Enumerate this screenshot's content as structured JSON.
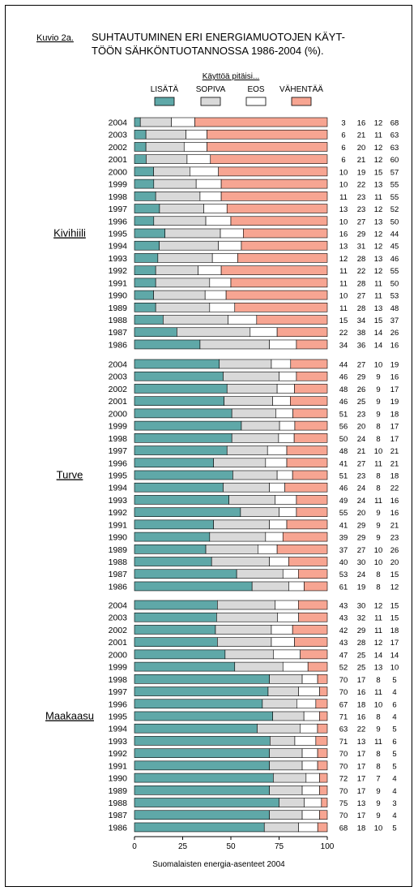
{
  "caption_label": "Kuvio 2a.",
  "title_line1": "SUHTAUTUMINEN ERI ENERGIAMUOTOJEN KÄYT-",
  "title_line2": "TÖÖN SÄHKÖNTUOTANNOSSA 1986-2004 (%).",
  "legend": {
    "heading": "Käyttöä pitäisi...",
    "items": [
      {
        "label": "LISÄTÄ",
        "color": "#5fa8a8"
      },
      {
        "label": "SOPIVA",
        "color": "#d9d9d9"
      },
      {
        "label": "EOS",
        "color": "#ffffff"
      },
      {
        "label": "VÄHENTÄÄ",
        "color": "#f7a592"
      }
    ]
  },
  "source_note": "Suomalaisten energia-asenteet 2004",
  "chart_data": {
    "type": "bar",
    "orientation": "horizontal",
    "stacked": true,
    "xlim": [
      0,
      100
    ],
    "xticks": [
      "0",
      "25",
      "50",
      "75",
      "100"
    ],
    "series_names": [
      "LISÄTÄ",
      "SOPIVA",
      "EOS",
      "VÄHENTÄÄ"
    ],
    "groups": [
      {
        "name": "Kivihiili",
        "rows": [
          {
            "year": "2004",
            "values": [
              3,
              16,
              12,
              68
            ]
          },
          {
            "year": "2003",
            "values": [
              6,
              21,
              11,
              63
            ]
          },
          {
            "year": "2002",
            "values": [
              6,
              20,
              12,
              63
            ]
          },
          {
            "year": "2001",
            "values": [
              6,
              21,
              12,
              60
            ]
          },
          {
            "year": "2000",
            "values": [
              10,
              19,
              15,
              57
            ]
          },
          {
            "year": "1999",
            "values": [
              10,
              22,
              13,
              55
            ]
          },
          {
            "year": "1998",
            "values": [
              11,
              23,
              11,
              55
            ]
          },
          {
            "year": "1997",
            "values": [
              13,
              23,
              12,
              52
            ]
          },
          {
            "year": "1996",
            "values": [
              10,
              27,
              13,
              50
            ]
          },
          {
            "year": "1995",
            "values": [
              16,
              29,
              12,
              44
            ]
          },
          {
            "year": "1994",
            "values": [
              13,
              31,
              12,
              45
            ]
          },
          {
            "year": "1993",
            "values": [
              12,
              28,
              13,
              46
            ]
          },
          {
            "year": "1992",
            "values": [
              11,
              22,
              12,
              55
            ]
          },
          {
            "year": "1991",
            "values": [
              11,
              28,
              11,
              50
            ]
          },
          {
            "year": "1990",
            "values": [
              10,
              27,
              11,
              53
            ]
          },
          {
            "year": "1989",
            "values": [
              11,
              28,
              13,
              48
            ]
          },
          {
            "year": "1988",
            "values": [
              15,
              34,
              15,
              37
            ]
          },
          {
            "year": "1987",
            "values": [
              22,
              38,
              14,
              26
            ]
          },
          {
            "year": "1986",
            "values": [
              34,
              36,
              14,
              16
            ]
          }
        ]
      },
      {
        "name": "Turve",
        "rows": [
          {
            "year": "2004",
            "values": [
              44,
              27,
              10,
              19
            ]
          },
          {
            "year": "2003",
            "values": [
              46,
              29,
              9,
              16
            ]
          },
          {
            "year": "2002",
            "values": [
              48,
              26,
              9,
              17
            ]
          },
          {
            "year": "2001",
            "values": [
              46,
              25,
              9,
              19
            ]
          },
          {
            "year": "2000",
            "values": [
              51,
              23,
              9,
              18
            ]
          },
          {
            "year": "1999",
            "values": [
              56,
              20,
              8,
              17
            ]
          },
          {
            "year": "1998",
            "values": [
              50,
              24,
              8,
              17
            ]
          },
          {
            "year": "1997",
            "values": [
              48,
              21,
              10,
              21
            ]
          },
          {
            "year": "1996",
            "values": [
              41,
              27,
              11,
              21
            ]
          },
          {
            "year": "1995",
            "values": [
              51,
              23,
              8,
              18
            ]
          },
          {
            "year": "1994",
            "values": [
              46,
              24,
              8,
              22
            ]
          },
          {
            "year": "1993",
            "values": [
              49,
              24,
              11,
              16
            ]
          },
          {
            "year": "1992",
            "values": [
              55,
              20,
              9,
              16
            ]
          },
          {
            "year": "1991",
            "values": [
              41,
              29,
              9,
              21
            ]
          },
          {
            "year": "1990",
            "values": [
              39,
              29,
              9,
              23
            ]
          },
          {
            "year": "1989",
            "values": [
              37,
              27,
              10,
              26
            ]
          },
          {
            "year": "1988",
            "values": [
              40,
              30,
              10,
              20
            ]
          },
          {
            "year": "1987",
            "values": [
              53,
              24,
              8,
              15
            ]
          },
          {
            "year": "1986",
            "values": [
              61,
              19,
              8,
              12
            ]
          }
        ]
      },
      {
        "name": "Maakaasu",
        "rows": [
          {
            "year": "2004",
            "values": [
              43,
              30,
              12,
              15
            ]
          },
          {
            "year": "2003",
            "values": [
              43,
              32,
              11,
              15
            ]
          },
          {
            "year": "2002",
            "values": [
              42,
              29,
              11,
              18
            ]
          },
          {
            "year": "2001",
            "values": [
              43,
              28,
              12,
              17
            ]
          },
          {
            "year": "2000",
            "values": [
              47,
              25,
              14,
              14
            ]
          },
          {
            "year": "1999",
            "values": [
              52,
              25,
              13,
              10
            ]
          },
          {
            "year": "1998",
            "values": [
              70,
              17,
              8,
              5
            ]
          },
          {
            "year": "1997",
            "values": [
              70,
              16,
              11,
              4
            ]
          },
          {
            "year": "1996",
            "values": [
              67,
              18,
              10,
              6
            ]
          },
          {
            "year": "1995",
            "values": [
              71,
              16,
              8,
              4
            ]
          },
          {
            "year": "1994",
            "values": [
              63,
              22,
              9,
              5
            ]
          },
          {
            "year": "1993",
            "values": [
              71,
              13,
              11,
              6
            ]
          },
          {
            "year": "1992",
            "values": [
              70,
              17,
              8,
              5
            ]
          },
          {
            "year": "1991",
            "values": [
              70,
              17,
              8,
              5
            ]
          },
          {
            "year": "1990",
            "values": [
              72,
              17,
              7,
              4
            ]
          },
          {
            "year": "1989",
            "values": [
              70,
              17,
              9,
              4
            ]
          },
          {
            "year": "1988",
            "values": [
              75,
              13,
              9,
              3
            ]
          },
          {
            "year": "1987",
            "values": [
              70,
              17,
              9,
              4
            ]
          },
          {
            "year": "1986",
            "values": [
              68,
              18,
              10,
              5
            ]
          }
        ]
      }
    ]
  }
}
